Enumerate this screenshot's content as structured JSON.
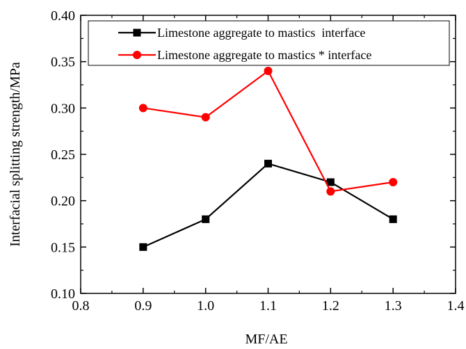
{
  "chart_data": {
    "type": "line",
    "title": "",
    "xlabel": "MF/AE",
    "ylabel": "Interfacial splitting strength/MPa",
    "xlim": [
      0.8,
      1.4
    ],
    "ylim": [
      0.1,
      0.4
    ],
    "x_ticks": [
      "0.8",
      "0.9",
      "1.0",
      "1.1",
      "1.2",
      "1.3",
      "1.4"
    ],
    "y_ticks": [
      "0.10",
      "0.15",
      "0.20",
      "0.25",
      "0.30",
      "0.35",
      "0.40"
    ],
    "grid": false,
    "legend_position": "top-right",
    "series": [
      {
        "name": "Limestone aggregate to mastics  interface",
        "color": "#000000",
        "marker": "square",
        "x": [
          0.9,
          1.0,
          1.1,
          1.2,
          1.3
        ],
        "y": [
          0.15,
          0.18,
          0.24,
          0.22,
          0.18
        ]
      },
      {
        "name": "Limestone aggregate to mastics * interface",
        "color": "#ff0000",
        "marker": "circle",
        "x": [
          0.9,
          1.0,
          1.1,
          1.2,
          1.3
        ],
        "y": [
          0.3,
          0.29,
          0.34,
          0.21,
          0.22
        ]
      }
    ]
  }
}
